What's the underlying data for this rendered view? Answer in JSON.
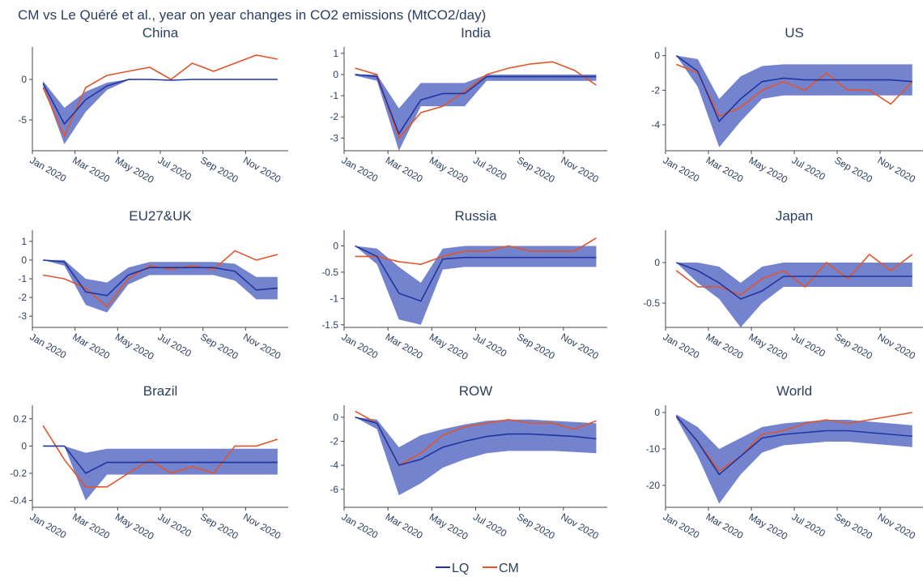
{
  "chart_data": {
    "type": "line",
    "title": "CM vs Le Quéré et al., year on year changes in CO2 emissions (MtCO2/day)",
    "x": [
      "2020-01",
      "2020-02",
      "2020-03",
      "2020-04",
      "2020-05",
      "2020-06",
      "2020-07",
      "2020-08",
      "2020-09",
      "2020-10",
      "2020-11",
      "2020-12"
    ],
    "xlim": [
      "2020-01",
      "2020-12"
    ],
    "xticks": [
      {
        "value": "2020-01",
        "label": "Jan 2020"
      },
      {
        "value": "2020-03",
        "label": "Mar 2020"
      },
      {
        "value": "2020-05",
        "label": "May 2020"
      },
      {
        "value": "2020-07",
        "label": "Jul 2020"
      },
      {
        "value": "2020-09",
        "label": "Sep 2020"
      },
      {
        "value": "2020-11",
        "label": "Nov 2020"
      }
    ],
    "legend": "bottom-center",
    "panels": [
      {
        "title": "China",
        "ylim": [
          -8.8,
          4
        ],
        "yticks": [
          -5,
          0
        ],
        "series": [
          {
            "name": "LQ",
            "color": "#1f35a0",
            "band_color": "#5c6dc4",
            "values": [
              -0.5,
              -5.5,
              -2.5,
              -0.8,
              0,
              0,
              -0.1,
              0,
              0,
              0,
              0,
              0
            ],
            "low": [
              -0.8,
              -8,
              -4,
              -1.3,
              -0.1,
              0,
              -0.1,
              0,
              0,
              0,
              0,
              0
            ],
            "high": [
              -0.2,
              -3.5,
              -1.5,
              -0.4,
              0,
              0,
              -0.1,
              0,
              0,
              0,
              0,
              0
            ]
          },
          {
            "name": "CM",
            "color": "#e2552b",
            "values": [
              -1,
              -7,
              -1,
              0.5,
              1,
              1.5,
              0,
              2,
              1,
              2,
              3,
              2.5
            ]
          }
        ]
      },
      {
        "title": "India",
        "ylim": [
          -3.6,
          1.3
        ],
        "yticks": [
          -3,
          -2,
          -1,
          0,
          1
        ],
        "series": [
          {
            "name": "LQ",
            "color": "#1f35a0",
            "band_color": "#5c6dc4",
            "values": [
              0,
              -0.1,
              -2.8,
              -1.2,
              -0.9,
              -0.9,
              -0.1,
              -0.1,
              -0.1,
              -0.1,
              -0.1,
              -0.1
            ],
            "low": [
              -0.05,
              -0.3,
              -3.6,
              -1.5,
              -1.5,
              -1.5,
              -0.3,
              -0.3,
              -0.3,
              -0.3,
              -0.3,
              -0.3
            ],
            "high": [
              0,
              0,
              -1.6,
              -0.4,
              -0.4,
              -0.4,
              0,
              0,
              0,
              0,
              0,
              0
            ]
          },
          {
            "name": "CM",
            "color": "#e2552b",
            "values": [
              0.3,
              0,
              -3,
              -1.8,
              -1.5,
              -0.8,
              0,
              0.3,
              0.5,
              0.6,
              0.2,
              -0.5
            ]
          }
        ]
      },
      {
        "title": "US",
        "ylim": [
          -5.5,
          0.5
        ],
        "yticks": [
          -4,
          -2,
          0
        ],
        "series": [
          {
            "name": "LQ",
            "color": "#1f35a0",
            "band_color": "#5c6dc4",
            "values": [
              0,
              -0.9,
              -3.8,
              -2.5,
              -1.5,
              -1.3,
              -1.4,
              -1.4,
              -1.4,
              -1.4,
              -1.4,
              -1.5
            ],
            "low": [
              0,
              -1.8,
              -5.3,
              -3.8,
              -2.5,
              -2.3,
              -2.3,
              -2.3,
              -2.3,
              -2.3,
              -2.3,
              -2.3
            ],
            "high": [
              0,
              -0.2,
              -2.5,
              -1.2,
              -0.6,
              -0.5,
              -0.5,
              -0.5,
              -0.5,
              -0.5,
              -0.5,
              -0.5
            ]
          },
          {
            "name": "CM",
            "color": "#e2552b",
            "values": [
              -0.5,
              -1,
              -3.5,
              -3,
              -2,
              -1.5,
              -2,
              -1,
              -2,
              -2,
              -2.8,
              -1.5
            ]
          }
        ]
      },
      {
        "title": "EU27&UK",
        "ylim": [
          -3.6,
          1.6
        ],
        "yticks": [
          -3,
          -2,
          -1,
          0,
          1
        ],
        "series": [
          {
            "name": "LQ",
            "color": "#1f35a0",
            "band_color": "#5c6dc4",
            "values": [
              0,
              -0.1,
              -1.7,
              -1.9,
              -0.8,
              -0.4,
              -0.4,
              -0.4,
              -0.4,
              -0.6,
              -1.6,
              -1.5
            ],
            "low": [
              0,
              -0.3,
              -2.4,
              -2.8,
              -1.3,
              -0.8,
              -0.8,
              -0.8,
              -0.8,
              -1.1,
              -2.1,
              -2.1
            ],
            "high": [
              0,
              0,
              -1,
              -1.2,
              -0.4,
              -0.1,
              -0.1,
              -0.1,
              -0.1,
              -0.2,
              -0.9,
              -0.9
            ]
          },
          {
            "name": "CM",
            "color": "#e2552b",
            "values": [
              -0.8,
              -1,
              -1.5,
              -2.5,
              -1,
              -0.3,
              -0.5,
              -0.3,
              -0.5,
              0.5,
              0,
              0.3
            ]
          }
        ]
      },
      {
        "title": "Russia",
        "ylim": [
          -1.55,
          0.3
        ],
        "yticks": [
          -1.5,
          -1,
          -0.5,
          0
        ],
        "series": [
          {
            "name": "LQ",
            "color": "#1f35a0",
            "band_color": "#5c6dc4",
            "values": [
              0,
              -0.2,
              -0.9,
              -1.05,
              -0.25,
              -0.22,
              -0.22,
              -0.22,
              -0.22,
              -0.22,
              -0.22,
              -0.22
            ],
            "low": [
              0,
              -0.35,
              -1.4,
              -1.5,
              -0.45,
              -0.4,
              -0.4,
              -0.4,
              -0.4,
              -0.4,
              -0.4,
              -0.4
            ],
            "high": [
              0,
              -0.05,
              -0.4,
              -0.7,
              -0.05,
              0,
              0,
              0,
              0,
              0,
              0,
              0
            ]
          },
          {
            "name": "CM",
            "color": "#e2552b",
            "values": [
              -0.2,
              -0.2,
              -0.3,
              -0.35,
              -0.2,
              -0.1,
              -0.1,
              0,
              -0.1,
              -0.1,
              -0.1,
              0.15
            ]
          }
        ]
      },
      {
        "title": "Japan",
        "ylim": [
          -0.8,
          0.4
        ],
        "yticks": [
          -0.5,
          0
        ],
        "series": [
          {
            "name": "LQ",
            "color": "#1f35a0",
            "band_color": "#5c6dc4",
            "values": [
              0,
              -0.1,
              -0.25,
              -0.45,
              -0.35,
              -0.17,
              -0.17,
              -0.17,
              -0.17,
              -0.17,
              -0.17,
              -0.17
            ],
            "low": [
              0,
              -0.25,
              -0.45,
              -0.8,
              -0.5,
              -0.3,
              -0.3,
              -0.3,
              -0.3,
              -0.3,
              -0.3,
              -0.3
            ],
            "high": [
              0,
              0,
              -0.05,
              -0.25,
              -0.05,
              0,
              0,
              0,
              0,
              0,
              0,
              0
            ]
          },
          {
            "name": "CM",
            "color": "#e2552b",
            "values": [
              -0.1,
              -0.3,
              -0.3,
              -0.4,
              -0.2,
              -0.1,
              -0.3,
              0,
              -0.2,
              0.1,
              -0.1,
              0.1
            ]
          }
        ]
      },
      {
        "title": "Brazil",
        "ylim": [
          -0.45,
          0.3
        ],
        "yticks": [
          -0.4,
          -0.2,
          0,
          0.2
        ],
        "series": [
          {
            "name": "LQ",
            "color": "#1f35a0",
            "band_color": "#5c6dc4",
            "values": [
              0,
              0,
              -0.2,
              -0.12,
              -0.12,
              -0.12,
              -0.12,
              -0.12,
              -0.12,
              -0.12,
              -0.12,
              -0.12
            ],
            "low": [
              0,
              0,
              -0.4,
              -0.21,
              -0.21,
              -0.21,
              -0.21,
              -0.21,
              -0.21,
              -0.21,
              -0.21,
              -0.21
            ],
            "high": [
              0,
              0,
              -0.05,
              -0.02,
              -0.02,
              -0.02,
              -0.02,
              -0.02,
              -0.02,
              -0.02,
              -0.02,
              -0.02
            ]
          },
          {
            "name": "CM",
            "color": "#e2552b",
            "values": [
              0.15,
              -0.1,
              -0.3,
              -0.3,
              -0.2,
              -0.1,
              -0.2,
              -0.15,
              -0.2,
              0,
              0,
              0.05
            ]
          }
        ]
      },
      {
        "title": "ROW",
        "ylim": [
          -7.5,
          1
        ],
        "yticks": [
          -6,
          -4,
          -2,
          0
        ],
        "series": [
          {
            "name": "LQ",
            "color": "#1f35a0",
            "band_color": "#5c6dc4",
            "values": [
              0,
              -0.5,
              -4,
              -3.5,
              -2.5,
              -2,
              -1.6,
              -1.4,
              -1.4,
              -1.5,
              -1.6,
              -1.8
            ],
            "low": [
              0,
              -1,
              -6.5,
              -5.5,
              -4.2,
              -3.5,
              -3,
              -2.8,
              -2.8,
              -2.8,
              -2.9,
              -3
            ],
            "high": [
              0,
              -0.2,
              -2.5,
              -1.5,
              -1,
              -0.6,
              -0.3,
              -0.2,
              -0.2,
              -0.3,
              -0.4,
              -0.5
            ]
          },
          {
            "name": "CM",
            "color": "#e2552b",
            "values": [
              0.5,
              -0.5,
              -4,
              -3,
              -1.5,
              -0.8,
              -0.5,
              -0.2,
              -0.5,
              -0.5,
              -1,
              -0.3
            ]
          }
        ]
      },
      {
        "title": "World",
        "ylim": [
          -26,
          2
        ],
        "yticks": [
          -20,
          -10,
          0
        ],
        "series": [
          {
            "name": "LQ",
            "color": "#1f35a0",
            "band_color": "#5c6dc4",
            "values": [
              -1,
              -8,
              -17,
              -12,
              -7,
              -6,
              -5.5,
              -5,
              -5,
              -5.5,
              -6,
              -6.5
            ],
            "low": [
              -1.5,
              -12,
              -25,
              -17,
              -11,
              -9,
              -8.5,
              -8,
              -8,
              -8.5,
              -9,
              -9.5
            ],
            "high": [
              -0.5,
              -4,
              -10,
              -7,
              -4,
              -3,
              -2.5,
              -2,
              -2,
              -2.5,
              -3,
              -3.5
            ]
          },
          {
            "name": "CM",
            "color": "#e2552b",
            "values": [
              -1,
              -8,
              -16,
              -12,
              -6,
              -5,
              -3,
              -2,
              -3,
              -2,
              -1,
              0
            ]
          }
        ]
      }
    ]
  }
}
